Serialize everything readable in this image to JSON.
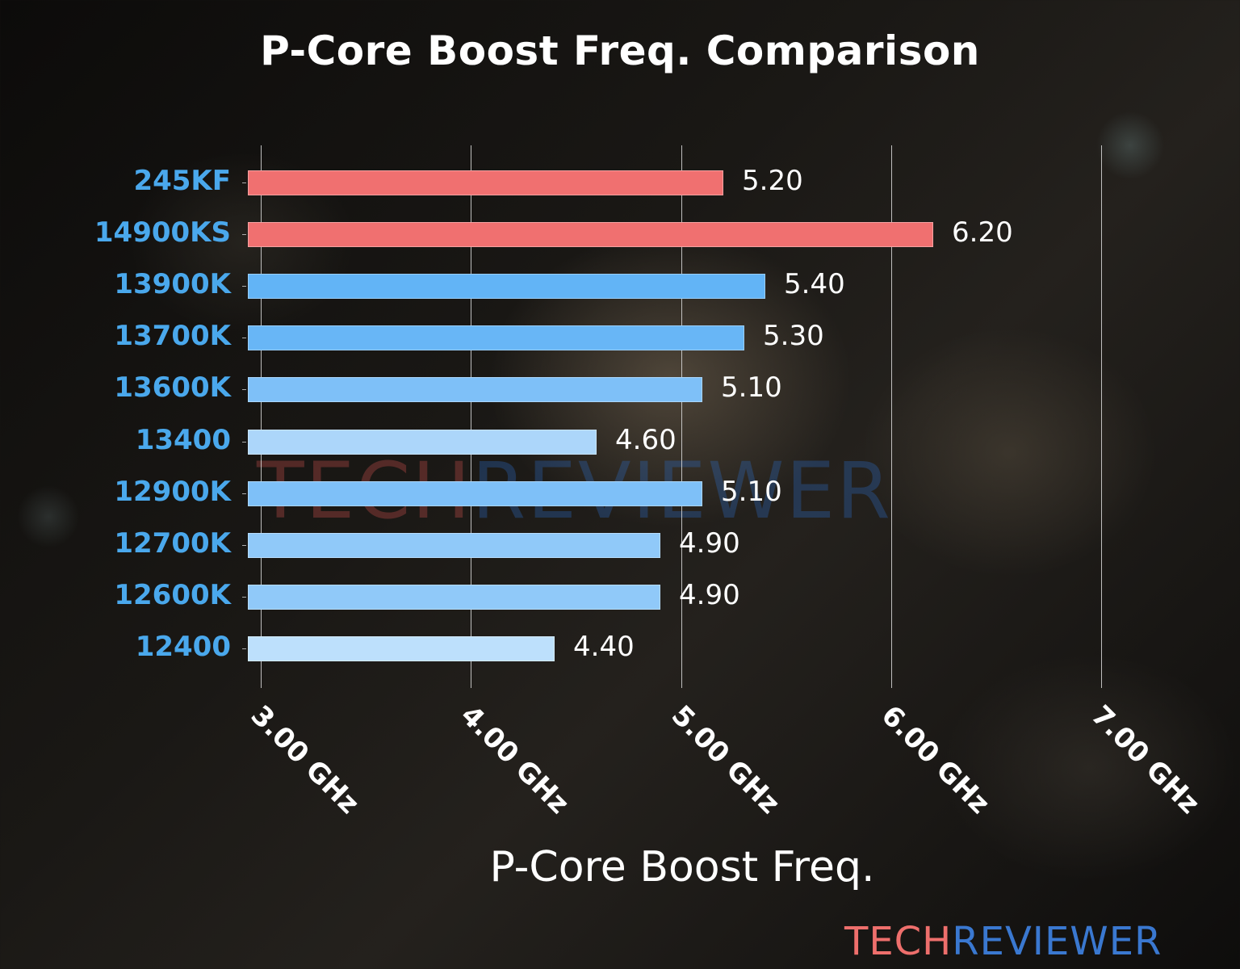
{
  "chart_data": {
    "type": "bar",
    "orientation": "horizontal",
    "title": "P-Core Boost Freq. Comparison",
    "xlabel": "P-Core Boost Freq.",
    "ylabel": "",
    "xlim": [
      3.0,
      7.0
    ],
    "x_ticks": [
      "3.00 GHz",
      "4.00 GHz",
      "5.00 GHz",
      "6.00 GHz",
      "7.00 GHz"
    ],
    "grid": "vertical",
    "legend": "none",
    "categories": [
      "245KF",
      "14900KS",
      "13900K",
      "13700K",
      "13600K",
      "13400",
      "12900K",
      "12700K",
      "12600K",
      "12400"
    ],
    "values": [
      5.2,
      6.2,
      5.4,
      5.3,
      5.1,
      4.6,
      5.1,
      4.9,
      4.9,
      4.4
    ],
    "value_labels": [
      "5.20",
      "6.20",
      "5.40",
      "5.30",
      "5.10",
      "4.60",
      "5.10",
      "4.90",
      "4.90",
      "4.40"
    ],
    "bar_colors": [
      "#f07070",
      "#f07070",
      "#62b4f6",
      "#68b6f6",
      "#7ec0f8",
      "#acd6fa",
      "#7ec0f8",
      "#90c9f9",
      "#90c9f9",
      "#bde0fc"
    ]
  },
  "header": {
    "title": "P-Core Boost Freq. Comparison"
  },
  "axis": {
    "xlabel": "P-Core Boost Freq.",
    "ticks": [
      "3.00 GHz",
      "4.00 GHz",
      "5.00 GHz",
      "6.00 GHz",
      "7.00 GHz"
    ]
  },
  "rows": [
    {
      "label": "245KF",
      "value": "5.20"
    },
    {
      "label": "14900KS",
      "value": "6.20"
    },
    {
      "label": "13900K",
      "value": "5.40"
    },
    {
      "label": "13700K",
      "value": "5.30"
    },
    {
      "label": "13600K",
      "value": "5.10"
    },
    {
      "label": "13400",
      "value": "4.60"
    },
    {
      "label": "12900K",
      "value": "5.10"
    },
    {
      "label": "12700K",
      "value": "4.90"
    },
    {
      "label": "12600K",
      "value": "4.90"
    },
    {
      "label": "12400",
      "value": "4.40"
    }
  ],
  "branding": {
    "part_a": "TECH",
    "part_b": "REVIEWER",
    "color_a": "#ee6f6c",
    "color_b": "#3a78d0"
  }
}
